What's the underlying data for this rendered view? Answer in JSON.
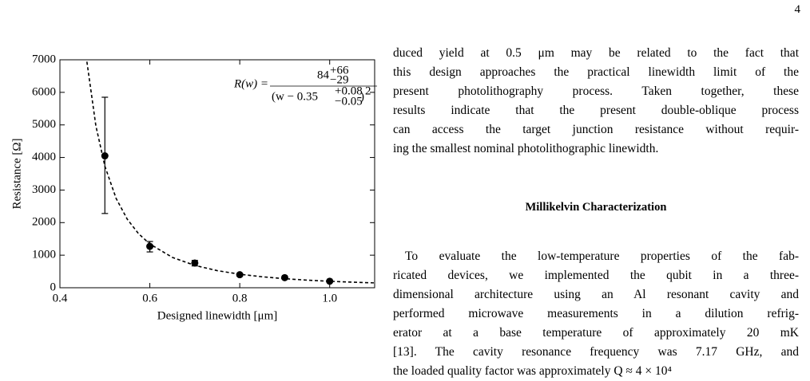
{
  "page_number": "4",
  "chart_data": {
    "type": "scatter",
    "x_label": "Designed linewidth [μm]",
    "y_label": "Resistance [Ω]",
    "xlim": [
      0.4,
      1.1
    ],
    "xticks": [
      0.4,
      0.6,
      0.8,
      {
        "value": 1,
        "label": "1.0"
      }
    ],
    "ylim": [
      0,
      7000
    ],
    "yticks": [
      0,
      1000,
      2000,
      3000,
      4000,
      5000,
      6000,
      7000
    ],
    "annotation": {
      "lhs": "R(w) =",
      "numerator": "84",
      "numerator_sup": "+66",
      "numerator_sub": "−29",
      "denominator": "(w − 0.35",
      "denominator_sup": "+0.08",
      "denominator_sub": "−0.05",
      "denominator_close": ")",
      "denominator_power": "2"
    },
    "series": [
      {
        "marker": "circle",
        "color": "#000000",
        "x": [
          0.5,
          0.6,
          0.7,
          0.8,
          0.9,
          1.0
        ],
        "values": [
          4050,
          1270,
          760,
          400,
          310,
          200
        ],
        "yerr": [
          [
            1770,
            1800
          ],
          [
            170,
            150
          ],
          [
            90,
            80
          ],
          [
            40,
            40
          ],
          [
            30,
            30
          ],
          [
            20,
            20
          ]
        ]
      },
      {
        "line_style": "dashed",
        "color": "#000000",
        "x": [
          0.46,
          0.48,
          0.5,
          0.525,
          0.55,
          0.575,
          0.6,
          0.65,
          0.7,
          0.75,
          0.8,
          0.85,
          0.9,
          0.95,
          1.0,
          1.05,
          1.1
        ],
        "values": [
          6942,
          4970,
          3733,
          2743,
          2100,
          1659,
          1344,
          933,
          686,
          525,
          415,
          336,
          278,
          233,
          199,
          171,
          149
        ]
      }
    ]
  },
  "text": {
    "paragraph1": [
      "duced yield at 0.5 μm may be related to the fact that",
      "this design approaches the practical linewidth limit of the",
      "present photolithography process. Taken together, these",
      "results indicate that the present double-oblique process",
      "can access the target junction resistance without requir-",
      "ing the smallest nominal photolithographic linewidth."
    ],
    "heading": "Millikelvin Characterization",
    "paragraph2": [
      "To evaluate the low-temperature properties of the fab-",
      "ricated devices, we implemented the qubit in a three-",
      "dimensional architecture using an Al resonant cavity and",
      "performed microwave measurements in a dilution refrig-",
      "erator at a base temperature of approximately 20 mK",
      "[13]. The cavity resonance frequency was 7.17 GHz, and",
      "the loaded quality factor was approximately Q ≈ 4 × 10⁴"
    ]
  }
}
